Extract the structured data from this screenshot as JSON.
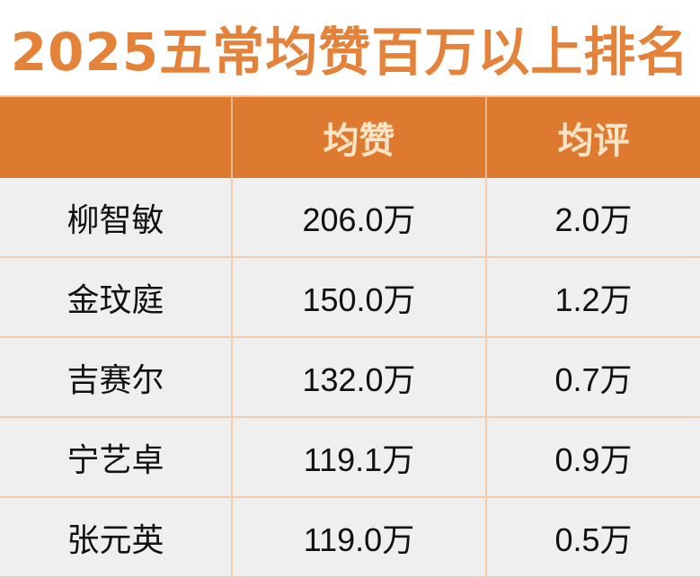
{
  "title": "2025五常均赞百万以上排名",
  "columns": [
    "",
    "均赞",
    "均评"
  ],
  "rows": [
    {
      "name": "柳智敏",
      "avg_likes": "206.0万",
      "avg_comments": "2.0万"
    },
    {
      "name": "金玟庭",
      "avg_likes": "150.0万",
      "avg_comments": "1.2万"
    },
    {
      "name": "吉赛尔",
      "avg_likes": "132.0万",
      "avg_comments": "0.7万"
    },
    {
      "name": "宁艺卓",
      "avg_likes": "119.1万",
      "avg_comments": "0.9万"
    },
    {
      "name": "张元英",
      "avg_likes": "119.0万",
      "avg_comments": "0.5万"
    }
  ],
  "colors": {
    "accent": "#DE7A30",
    "title": "#E4823A",
    "header_text": "#FBE3C6",
    "row_bg": "#EFEFEF"
  }
}
